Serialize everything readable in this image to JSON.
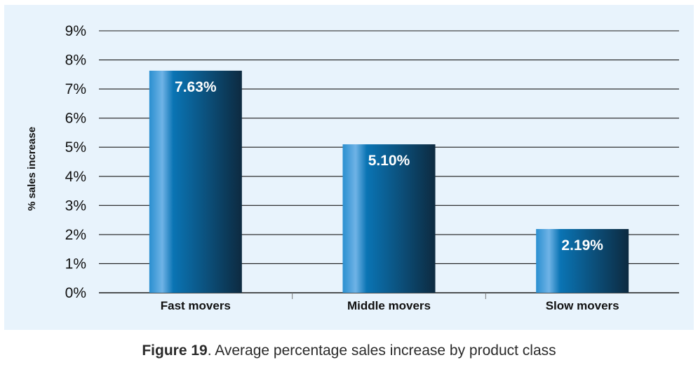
{
  "chart_data": {
    "type": "bar",
    "categories": [
      "Fast movers",
      "Middle movers",
      "Slow movers"
    ],
    "values": [
      7.63,
      5.1,
      2.19
    ],
    "value_labels": [
      "7.63%",
      "5.10%",
      "2.19%"
    ],
    "ylabel": "% sales increase",
    "xlabel": "",
    "ylim": [
      0,
      9
    ],
    "yticks": [
      0,
      1,
      2,
      3,
      4,
      5,
      6,
      7,
      8,
      9
    ],
    "ytick_labels": [
      "0%",
      "1%",
      "2%",
      "3%",
      "4%",
      "5%",
      "6%",
      "7%",
      "8%",
      "9%"
    ],
    "grid": true,
    "legend": "none"
  },
  "colors": {
    "panel_background": "#e8f3fc",
    "bar_light": "#6fb3e6",
    "bar_mid": "#0a74b4",
    "bar_dark": "#0d2a40",
    "gridline": "#1a1a1a"
  },
  "caption": {
    "label": "Figure 19",
    "text": ". Average percentage sales increase by product class"
  }
}
